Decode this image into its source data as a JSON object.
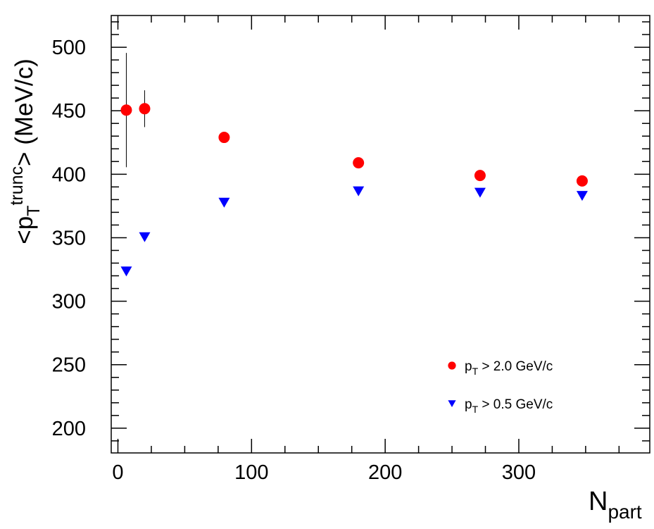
{
  "chart_data": {
    "type": "scatter",
    "ylabel": [
      "<p",
      "T",
      "trunc",
      "> (MeV/c)"
    ],
    "xlabel": [
      "N",
      "part"
    ],
    "xlim": [
      -5,
      398
    ],
    "ylim": [
      180.5,
      525
    ],
    "xticks": [
      0,
      100,
      200,
      300
    ],
    "yticks": [
      200,
      250,
      300,
      350,
      400,
      450,
      500
    ],
    "xminorticks": [
      25,
      50,
      75,
      125,
      150,
      175,
      225,
      250,
      275,
      325,
      350,
      375
    ],
    "yminorticks": [
      190,
      210,
      220,
      230,
      240,
      260,
      270,
      280,
      290,
      310,
      320,
      330,
      340,
      360,
      370,
      380,
      390,
      410,
      420,
      430,
      440,
      460,
      470,
      480,
      490,
      510,
      520
    ],
    "legend": "lower right",
    "series": [
      {
        "name": [
          "p",
          "T",
          " > 2.0 GeV/c"
        ],
        "color": "#ff0000",
        "marker": "circle",
        "x": [
          6.3,
          20,
          79.5,
          180,
          271,
          347.4
        ],
        "values": [
          450.5,
          451.6,
          429,
          409,
          399,
          394.7
        ],
        "errors": [
          45,
          14.5,
          0,
          0,
          0,
          3
        ]
      },
      {
        "name": [
          "p",
          "T",
          " > 0.5 GeV/c"
        ],
        "color": "#0000ff",
        "marker": "triangle-down",
        "x": [
          6.3,
          20,
          79.5,
          180,
          271,
          347.4
        ],
        "values": [
          323.5,
          350.5,
          377.7,
          386.6,
          385.5,
          383
        ]
      }
    ]
  }
}
